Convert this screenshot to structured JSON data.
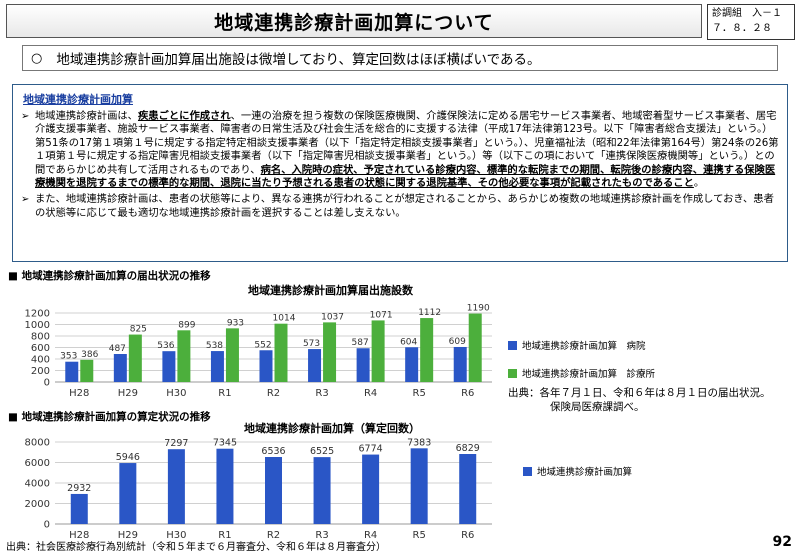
{
  "header": {
    "title": "地域連携診療計画加算について",
    "doc_ref_line1": "診調組　入－１",
    "doc_ref_line2": "７．８．２８"
  },
  "summary": {
    "marker": "○",
    "text": "地域連携診療計画加算届出施設は微増しており、算定回数はほぼ横ばいである。"
  },
  "info": {
    "title": "地域連携診療計画加算",
    "p1_a": "地域連携診療計画は、",
    "p1_b": "疾患ごとに作成され",
    "p1_c": "、一連の治療を担う複数の保険医療機関、介護保険法に定める居宅サービス事業者、地域密着型サービス事業者、居宅介護支援事業者、施設サービス事業者、障害者の日常生活及び社会生活を総合的に支援する法律（平成17年法律第123号。以下「障害者総合支援法」という。）第51条の17第１項第１号に規定する指定特定相談支援事業者（以下「指定特定相談支援事業者」という。）、児童福祉法（昭和22年法律第164号）第24条の26第１項第１号に規定する指定障害児相談支援事業者（以下「指定障害児相談支援事業者」という。）等（以下この項において「連携保険医療機関等」という。）との間であらかじめ共有して活用されるものであり、",
    "p1_d": "病名、入院時の症状、予定されている診療内容、標準的な転院までの期間、転院後の診療内容、連携する保険医療機関を退院するまでの標準的な期間、退院に当たり予想される患者の状態に関する退院基準、その他必要な事項が記載されたものであること",
    "p1_e": "。",
    "p2": "また、地域連携診療計画は、患者の状態等により、異なる連携が行われることが想定されることから、あらかじめ複数の地域連携診療計画を作成しておき、患者の状態等に応じて最も適切な地域連携診療計画を選択することは差し支えない。"
  },
  "section1_label": "■ 地域連携診療計画加算の届出状況の推移",
  "section2_label": "■ 地域連携診療計画加算の算定状況の推移",
  "source_note_1": "出典：各年７月１日、令和６年は８月１日の届出状況。",
  "source_note_2": "保険局医療課調べ。",
  "footer": {
    "source": "出典：社会医療診療行為別統計（令和５年まで６月審査分、令和６年は８月審査分）",
    "page": "92"
  },
  "colors": {
    "blue": "#2a56c6",
    "green": "#4caf3c",
    "title_blue": "#1a3fa0"
  },
  "chart_data": [
    {
      "type": "bar",
      "title": "地域連携診療計画加算届出施設数",
      "categories": [
        "H28",
        "H29",
        "H30",
        "R1",
        "R2",
        "R3",
        "R4",
        "R5",
        "R6"
      ],
      "series": [
        {
          "name": "地域連携診療計画加算　病院",
          "values": [
            353,
            487,
            536,
            538,
            552,
            573,
            587,
            604,
            609
          ]
        },
        {
          "name": "地域連携診療計画加算　診療所",
          "values": [
            386,
            825,
            899,
            933,
            1014,
            1037,
            1071,
            1112,
            1190
          ]
        }
      ],
      "ylim": [
        0,
        1200
      ],
      "yticks": [
        "0",
        "200",
        "400",
        "600",
        "800",
        "1000",
        "1200"
      ],
      "grid": true,
      "legend": "right"
    },
    {
      "type": "bar",
      "title": "地域連携診療計画加算（算定回数）",
      "categories": [
        "H28",
        "H29",
        "H30",
        "R1",
        "R2",
        "R3",
        "R4",
        "R5",
        "R6"
      ],
      "series": [
        {
          "name": "地域連携診療計画加算",
          "values": [
            2932,
            5946,
            7297,
            7345,
            6536,
            6525,
            6774,
            7383,
            6829
          ]
        }
      ],
      "ylim": [
        0,
        8000
      ],
      "yticks": [
        "0",
        "2000",
        "4000",
        "6000",
        "8000"
      ],
      "grid": true,
      "legend": "right"
    }
  ]
}
